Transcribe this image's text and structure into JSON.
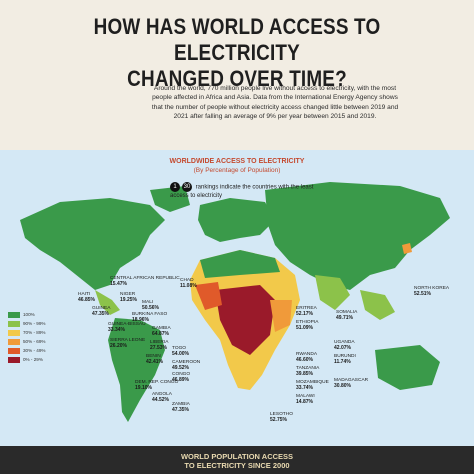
{
  "title": {
    "line1": "HOW HAS WORLD ACCESS TO ELECTRICITY",
    "line2": "CHANGED OVER TIME?"
  },
  "intro": "Around the world, 770 million people live without access to electricity, with the most people affected in Africa and Asia. Data from the International Energy Agency shows that the number of people without electricity access changed little between 2019 and 2021 after falling an average of 9% per year between 2015 and 2019.",
  "map": {
    "heading": "WORLDWIDE ACCESS TO ELECTRICITY",
    "subheading": "(By Percentage of Population)",
    "rank_badge_start": "1",
    "rank_badge_end": "30",
    "rank_note": "rankings indicate the countries with the least access to electricity",
    "legend": [
      {
        "label": "100%",
        "color": "#3a9a4a"
      },
      {
        "label": "90% - 99%",
        "color": "#8cc24a"
      },
      {
        "label": "70% - 89%",
        "color": "#f2c94a"
      },
      {
        "label": "50% - 69%",
        "color": "#f09a3a"
      },
      {
        "label": "30% - 49%",
        "color": "#e05a2a"
      },
      {
        "label": "0% - 29%",
        "color": "#9a1a2a"
      }
    ],
    "labels": [
      {
        "name": "CENTRAL AFRICAN REPUBLIC",
        "pct": "15.47%"
      },
      {
        "name": "CHAD",
        "pct": "11.08%"
      },
      {
        "name": "HAITI",
        "pct": "46.85%"
      },
      {
        "name": "NIGER",
        "pct": "19.25%"
      },
      {
        "name": "MALI",
        "pct": "50.56%"
      },
      {
        "name": "GUINEA",
        "pct": "47.35%"
      },
      {
        "name": "BURKINA FASO",
        "pct": "18.96%"
      },
      {
        "name": "GUINEA-BISSAU",
        "pct": "33.34%"
      },
      {
        "name": "GAMBIA",
        "pct": "64.87%"
      },
      {
        "name": "SIERRA LEONE",
        "pct": "26.20%"
      },
      {
        "name": "LIBERIA",
        "pct": "27.53%"
      },
      {
        "name": "TOGO",
        "pct": "54.00%"
      },
      {
        "name": "BENIN",
        "pct": "42.41%"
      },
      {
        "name": "CAMEROON",
        "pct": "49.52%"
      },
      {
        "name": "CONGO",
        "pct": "46.89%"
      },
      {
        "name": "DEM. REP. CONGO",
        "pct": "19.10%"
      },
      {
        "name": "ANGOLA",
        "pct": "44.52%"
      },
      {
        "name": "ZAMBIA",
        "pct": "47.35%"
      },
      {
        "name": "ERITREA",
        "pct": "52.17%"
      },
      {
        "name": "ETHIOPIA",
        "pct": "51.09%"
      },
      {
        "name": "SOMALIA",
        "pct": "49.71%"
      },
      {
        "name": "UGANDA",
        "pct": "42.07%"
      },
      {
        "name": "BURUNDI",
        "pct": "11.74%"
      },
      {
        "name": "TANZANIA",
        "pct": "39.85%"
      },
      {
        "name": "MALAWI",
        "pct": "14.87%"
      },
      {
        "name": "MOZAMBIQUE",
        "pct": "33.74%"
      },
      {
        "name": "MADAGASCAR",
        "pct": "30.80%"
      },
      {
        "name": "RWANDA",
        "pct": "46.60%"
      },
      {
        "name": "NORTH KOREA",
        "pct": "52.51%"
      },
      {
        "name": "LESOTHO",
        "pct": "52.75%"
      }
    ]
  },
  "bottom": {
    "title1": "WORLD POPULATION ACCESS",
    "title2": "TO ELECTRICITY SINCE 2000"
  }
}
